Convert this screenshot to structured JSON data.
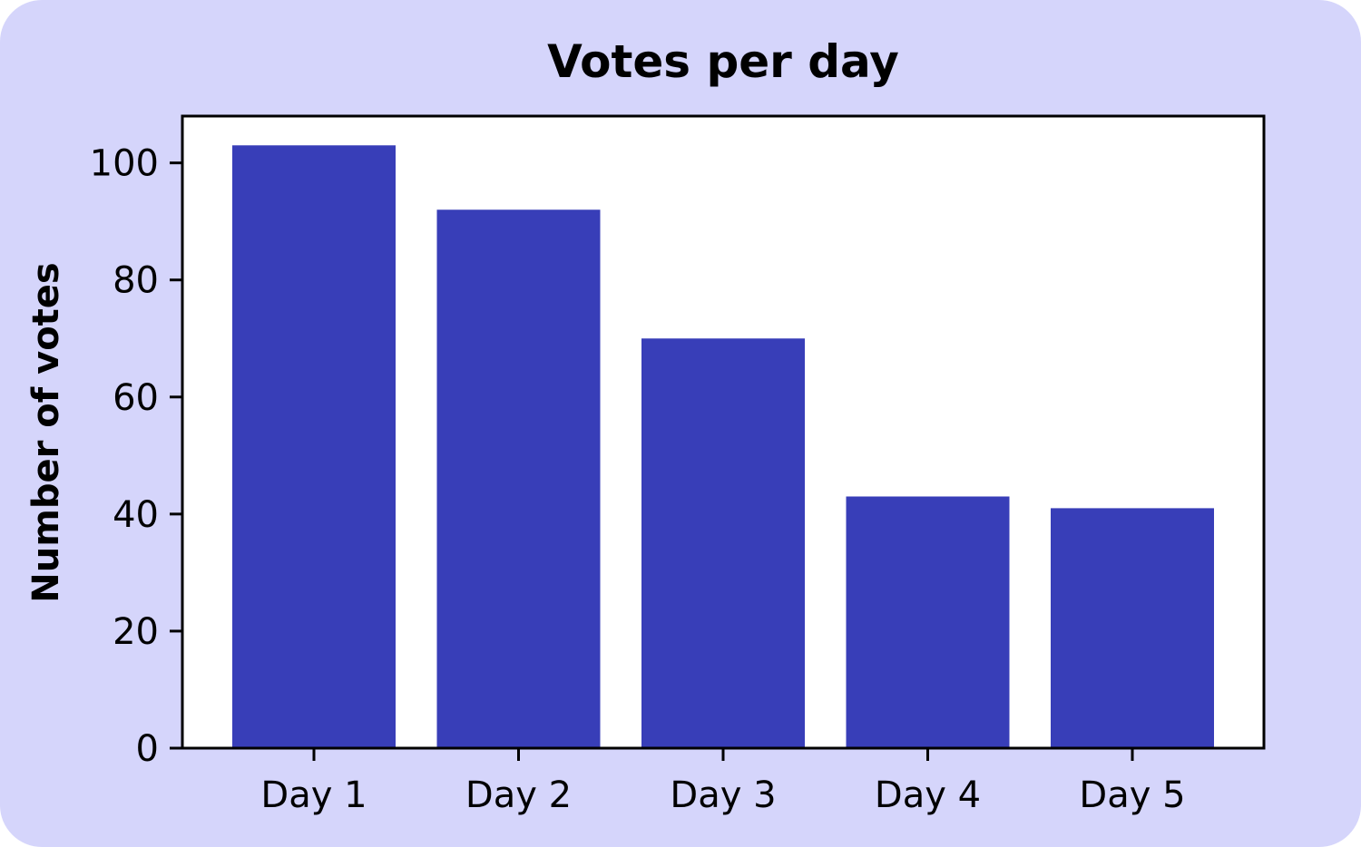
{
  "colors": {
    "background": "#d5d5fb",
    "plot_area": "#ffffff",
    "bar": "#383eb8",
    "axis": "#000000"
  },
  "chart_data": {
    "type": "bar",
    "title": "Votes per day",
    "xlabel": "",
    "ylabel": "Number of votes",
    "categories": [
      "Day 1",
      "Day 2",
      "Day 3",
      "Day 4",
      "Day 5"
    ],
    "values": [
      103,
      92,
      70,
      43,
      41
    ],
    "ylim": [
      0,
      108
    ],
    "yticks": [
      0,
      20,
      40,
      60,
      80,
      100
    ],
    "grid": false,
    "legend": "none"
  }
}
